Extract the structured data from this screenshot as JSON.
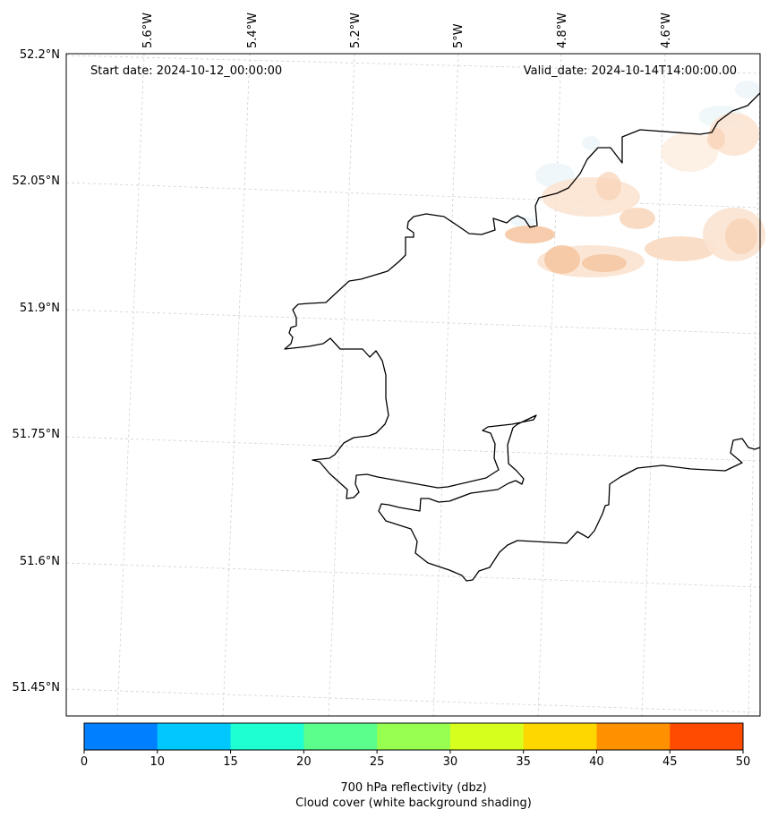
{
  "map": {
    "start_date_text": "Start date: 2024-10-12_00:00:00",
    "valid_date_text": "Valid_date: 2024-10-14T14:00:00.00",
    "lon_labels": [
      "5.6°W",
      "5.4°W",
      "5.2°W",
      "5°W",
      "4.8°W",
      "4.6°W"
    ],
    "lat_labels": [
      "52.2°N",
      "52.05°N",
      "51.9°N",
      "51.75°N",
      "51.6°N",
      "51.45°N"
    ],
    "gridlines": "dashed, light grey",
    "coastline_color": "#000000",
    "reflectivity_field": "light orange patches in the north-east, along and offshore of the coast",
    "cloud_shading_color": "#eaf4f8"
  },
  "colorbar": {
    "label_line1": "700 hPa reflectivity (dbz)",
    "label_line2": "Cloud cover (white background shading)",
    "ticks": [
      "0",
      "10",
      "15",
      "20",
      "25",
      "30",
      "35",
      "40",
      "45",
      "50"
    ],
    "colors": [
      "#0080ff",
      "#00c8ff",
      "#1effd2",
      "#5aff8c",
      "#96ff50",
      "#d7ff1e",
      "#ffd700",
      "#ff9100",
      "#ff4b00"
    ]
  }
}
